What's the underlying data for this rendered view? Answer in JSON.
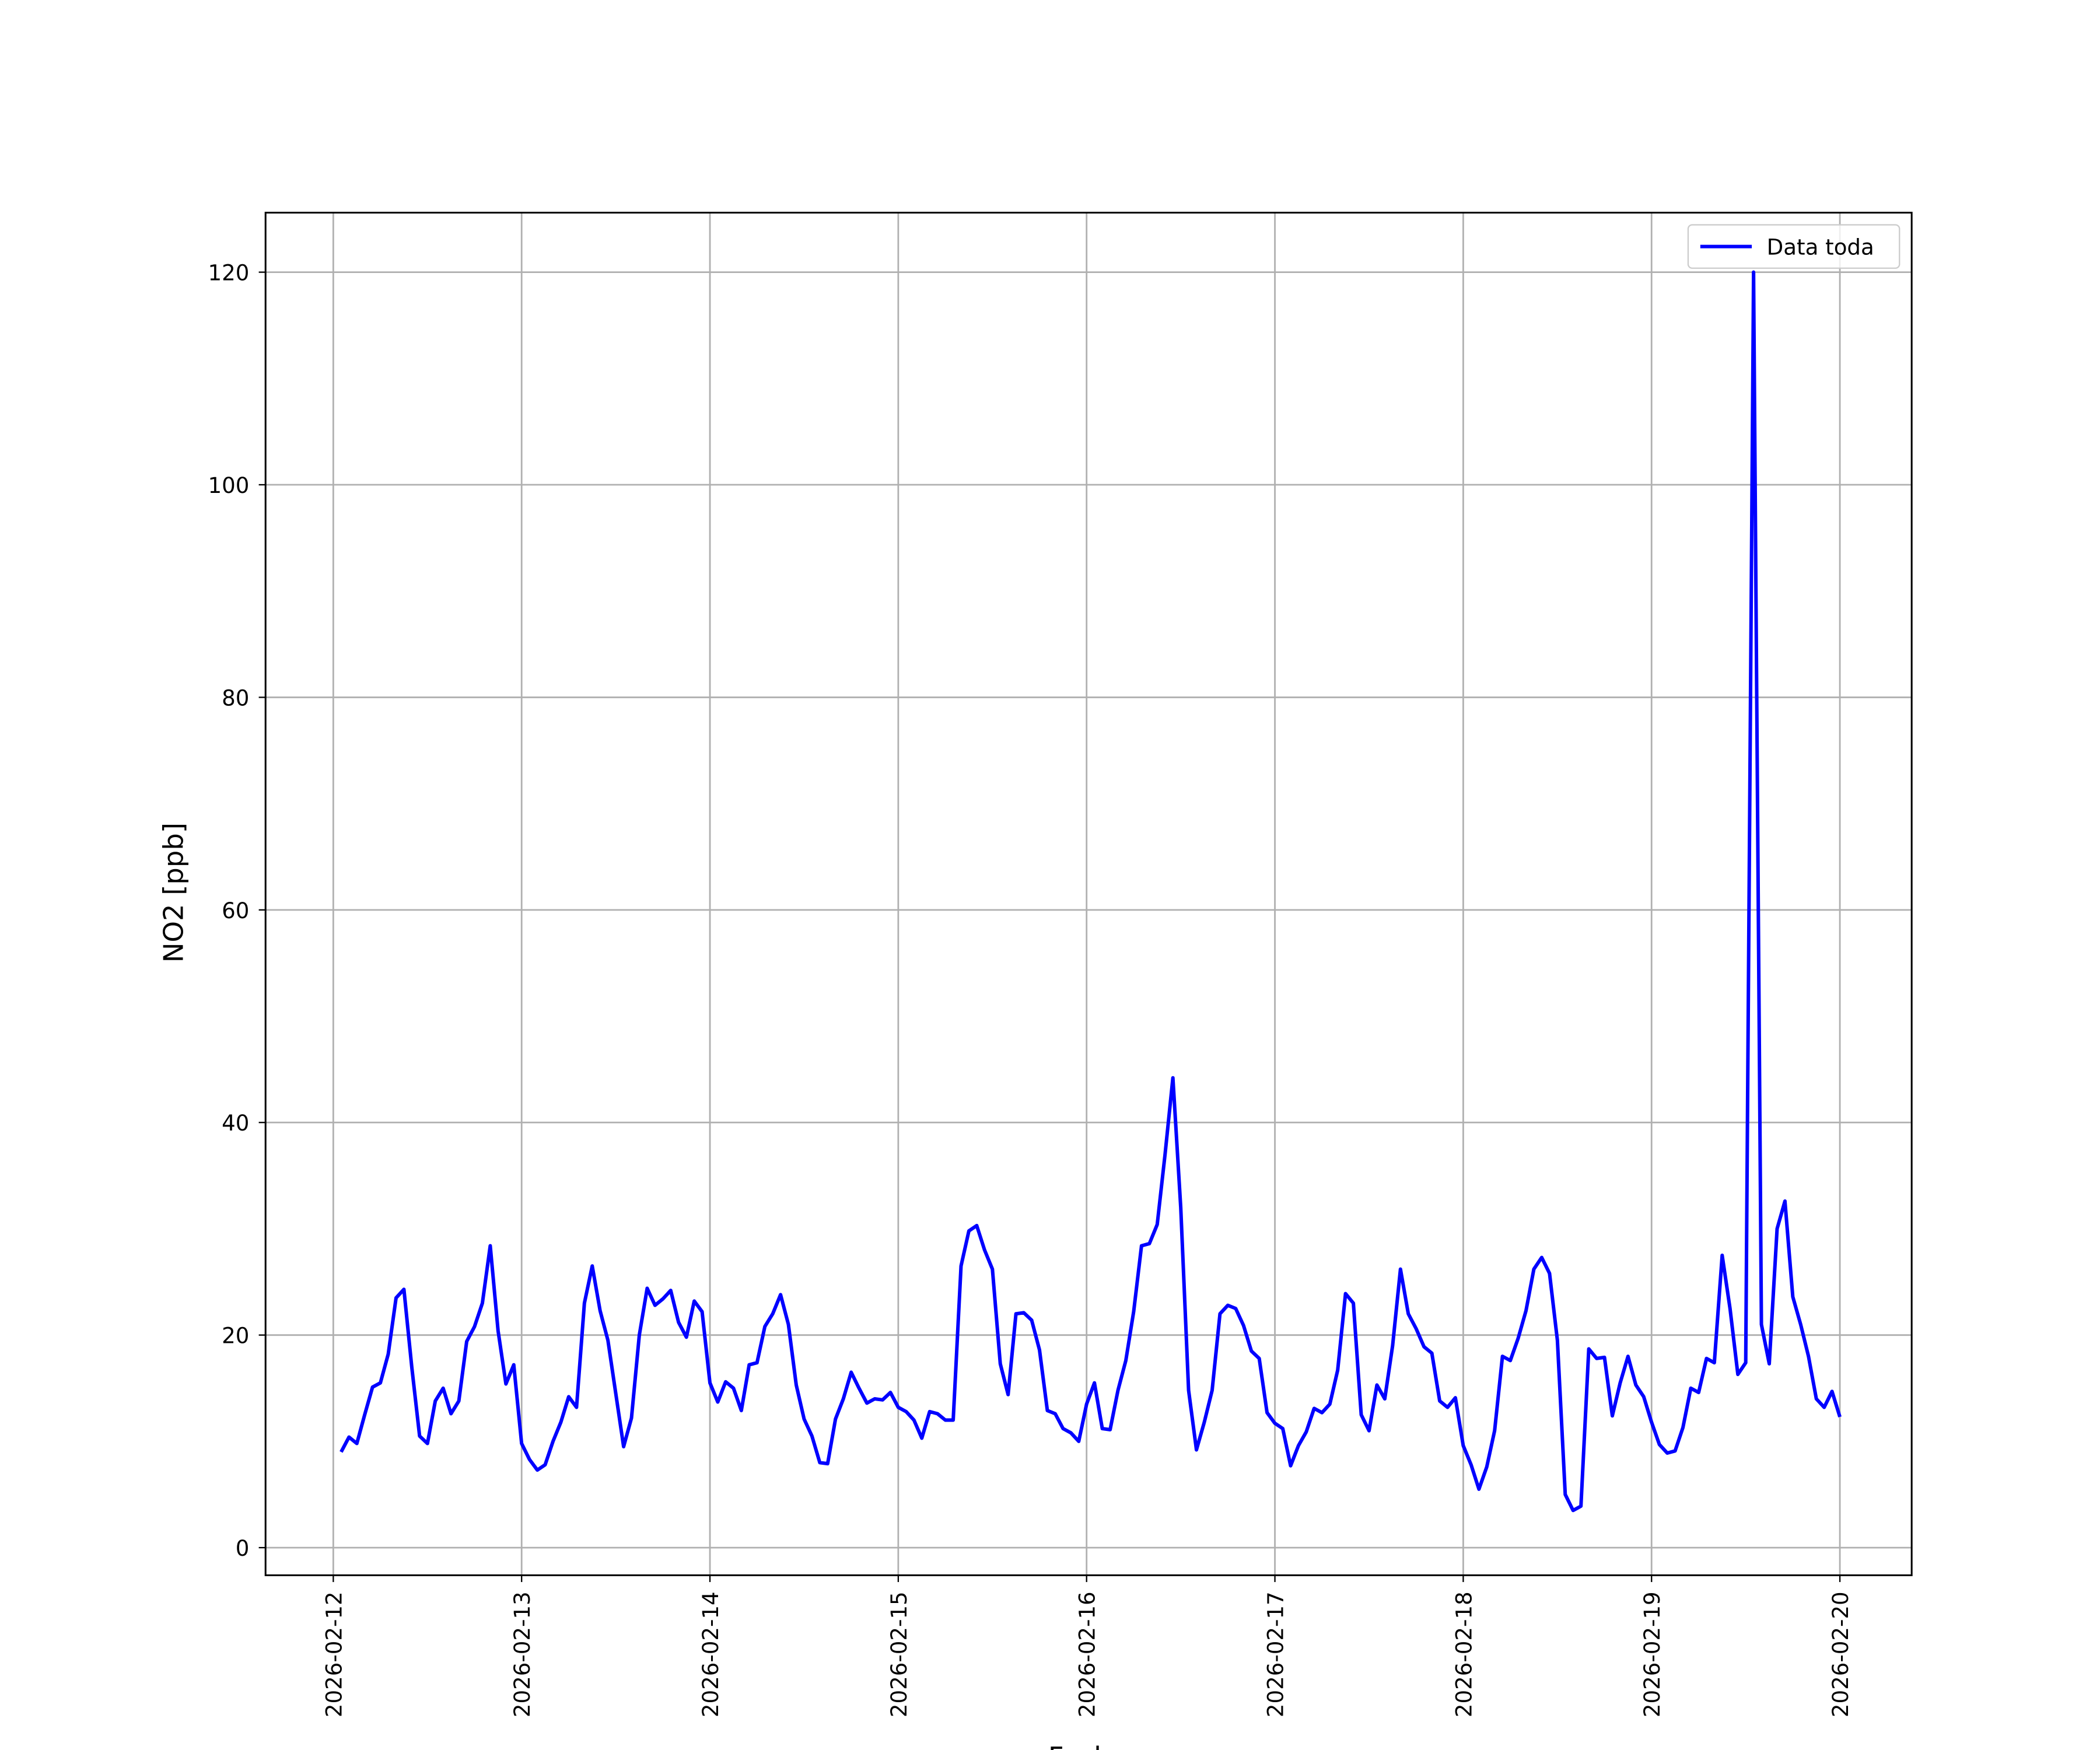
{
  "chart_data": {
    "type": "line",
    "xlabel": "Fecha",
    "ylabel": "NO2 [ppb]",
    "x": [
      "2026-02-12 01:00",
      "2026-02-12 02:00",
      "2026-02-12 03:00",
      "2026-02-12 04:00",
      "2026-02-12 05:00",
      "2026-02-12 06:00",
      "2026-02-12 07:00",
      "2026-02-12 08:00",
      "2026-02-12 09:00",
      "2026-02-12 10:00",
      "2026-02-12 11:00",
      "2026-02-12 12:00",
      "2026-02-12 13:00",
      "2026-02-12 14:00",
      "2026-02-12 15:00",
      "2026-02-12 16:00",
      "2026-02-12 17:00",
      "2026-02-12 18:00",
      "2026-02-12 19:00",
      "2026-02-12 20:00",
      "2026-02-12 21:00",
      "2026-02-12 22:00",
      "2026-02-12 23:00",
      "2026-02-13 00:00",
      "2026-02-13 01:00",
      "2026-02-13 02:00",
      "2026-02-13 03:00",
      "2026-02-13 04:00",
      "2026-02-13 05:00",
      "2026-02-13 06:00",
      "2026-02-13 07:00",
      "2026-02-13 08:00",
      "2026-02-13 09:00",
      "2026-02-13 10:00",
      "2026-02-13 11:00",
      "2026-02-13 12:00",
      "2026-02-13 13:00",
      "2026-02-13 14:00",
      "2026-02-13 15:00",
      "2026-02-13 16:00",
      "2026-02-13 17:00",
      "2026-02-13 18:00",
      "2026-02-13 19:00",
      "2026-02-13 20:00",
      "2026-02-13 21:00",
      "2026-02-13 22:00",
      "2026-02-13 23:00",
      "2026-02-14 00:00",
      "2026-02-14 01:00",
      "2026-02-14 02:00",
      "2026-02-14 03:00",
      "2026-02-14 04:00",
      "2026-02-14 05:00",
      "2026-02-14 06:00",
      "2026-02-14 07:00",
      "2026-02-14 08:00",
      "2026-02-14 09:00",
      "2026-02-14 10:00",
      "2026-02-14 11:00",
      "2026-02-14 12:00",
      "2026-02-14 13:00",
      "2026-02-14 14:00",
      "2026-02-14 15:00",
      "2026-02-14 16:00",
      "2026-02-14 17:00",
      "2026-02-14 18:00",
      "2026-02-14 19:00",
      "2026-02-14 20:00",
      "2026-02-14 21:00",
      "2026-02-14 22:00",
      "2026-02-14 23:00",
      "2026-02-15 00:00",
      "2026-02-15 01:00",
      "2026-02-15 02:00",
      "2026-02-15 03:00",
      "2026-02-15 04:00",
      "2026-02-15 05:00",
      "2026-02-15 06:00",
      "2026-02-15 07:00",
      "2026-02-15 08:00",
      "2026-02-15 09:00",
      "2026-02-15 10:00",
      "2026-02-15 11:00",
      "2026-02-15 12:00",
      "2026-02-15 13:00",
      "2026-02-15 14:00",
      "2026-02-15 15:00",
      "2026-02-15 16:00",
      "2026-02-15 17:00",
      "2026-02-15 18:00",
      "2026-02-15 19:00",
      "2026-02-15 20:00",
      "2026-02-15 21:00",
      "2026-02-15 22:00",
      "2026-02-15 23:00",
      "2026-02-16 00:00",
      "2026-02-16 01:00",
      "2026-02-16 02:00",
      "2026-02-16 03:00",
      "2026-02-16 04:00",
      "2026-02-16 05:00",
      "2026-02-16 06:00",
      "2026-02-16 07:00",
      "2026-02-16 08:00",
      "2026-02-16 09:00",
      "2026-02-16 10:00",
      "2026-02-16 11:00",
      "2026-02-16 12:00",
      "2026-02-16 13:00",
      "2026-02-16 14:00",
      "2026-02-16 15:00",
      "2026-02-16 16:00",
      "2026-02-16 17:00",
      "2026-02-16 18:00",
      "2026-02-16 19:00",
      "2026-02-16 20:00",
      "2026-02-16 21:00",
      "2026-02-16 22:00",
      "2026-02-16 23:00",
      "2026-02-17 00:00",
      "2026-02-17 01:00",
      "2026-02-17 02:00",
      "2026-02-17 03:00",
      "2026-02-17 04:00",
      "2026-02-17 05:00",
      "2026-02-17 06:00",
      "2026-02-17 07:00",
      "2026-02-17 08:00",
      "2026-02-17 09:00",
      "2026-02-17 10:00",
      "2026-02-17 11:00",
      "2026-02-17 12:00",
      "2026-02-17 13:00",
      "2026-02-17 14:00",
      "2026-02-17 15:00",
      "2026-02-17 16:00",
      "2026-02-17 17:00",
      "2026-02-17 18:00",
      "2026-02-17 19:00",
      "2026-02-17 20:00",
      "2026-02-17 21:00",
      "2026-02-17 22:00",
      "2026-02-17 23:00",
      "2026-02-18 00:00",
      "2026-02-18 01:00",
      "2026-02-18 02:00",
      "2026-02-18 03:00",
      "2026-02-18 04:00",
      "2026-02-18 05:00",
      "2026-02-18 06:00",
      "2026-02-18 07:00",
      "2026-02-18 08:00",
      "2026-02-18 09:00",
      "2026-02-18 10:00",
      "2026-02-18 11:00",
      "2026-02-18 12:00",
      "2026-02-18 13:00",
      "2026-02-18 14:00",
      "2026-02-18 15:00",
      "2026-02-18 16:00",
      "2026-02-18 17:00",
      "2026-02-18 18:00",
      "2026-02-18 19:00",
      "2026-02-18 20:00",
      "2026-02-18 21:00",
      "2026-02-18 22:00",
      "2026-02-18 23:00",
      "2026-02-19 00:00",
      "2026-02-19 01:00",
      "2026-02-19 02:00",
      "2026-02-19 03:00",
      "2026-02-19 04:00",
      "2026-02-19 05:00",
      "2026-02-19 06:00",
      "2026-02-19 07:00",
      "2026-02-19 08:00",
      "2026-02-19 09:00",
      "2026-02-19 10:00",
      "2026-02-19 11:00",
      "2026-02-19 12:00",
      "2026-02-19 13:00",
      "2026-02-19 14:00",
      "2026-02-19 15:00",
      "2026-02-19 16:00",
      "2026-02-19 17:00",
      "2026-02-19 18:00",
      "2026-02-19 19:00",
      "2026-02-19 20:00",
      "2026-02-19 21:00",
      "2026-02-19 22:00",
      "2026-02-19 23:00",
      "2026-02-20 00:00"
    ],
    "series": [
      {
        "name": "Data toda",
        "color": "#0000ff",
        "values": [
          9.0,
          10.4,
          9.8,
          12.5,
          15.1,
          15.5,
          18.2,
          23.5,
          24.3,
          17.0,
          10.5,
          9.8,
          13.8,
          15.0,
          12.6,
          13.8,
          19.4,
          20.8,
          23.0,
          28.4,
          20.4,
          15.4,
          17.2,
          9.8,
          8.3,
          7.3,
          7.8,
          10.0,
          11.8,
          14.2,
          13.2,
          23.0,
          26.5,
          22.3,
          19.5,
          14.5,
          9.5,
          12.2,
          20.0,
          24.4,
          22.8,
          23.4,
          24.2,
          21.2,
          19.8,
          23.2,
          22.2,
          15.5,
          13.7,
          15.6,
          15.0,
          12.9,
          17.2,
          17.4,
          20.8,
          22.0,
          23.8,
          21.0,
          15.3,
          12.1,
          10.5,
          8.0,
          7.9,
          12.1,
          14.0,
          16.5,
          15.0,
          13.6,
          14.0,
          13.9,
          14.6,
          13.2,
          12.8,
          12.0,
          10.3,
          12.8,
          12.6,
          12.0,
          12.0,
          26.5,
          29.8,
          30.3,
          28.0,
          26.2,
          17.3,
          14.4,
          22.0,
          22.1,
          21.4,
          18.6,
          12.9,
          12.6,
          11.2,
          10.8,
          10.0,
          13.5,
          15.5,
          11.2,
          11.1,
          14.8,
          17.6,
          22.2,
          28.4,
          28.6,
          30.4,
          37.0,
          44.2,
          32.0,
          14.8,
          9.2,
          11.8,
          14.8,
          22.0,
          22.8,
          22.5,
          20.9,
          18.5,
          17.8,
          12.7,
          11.7,
          11.2,
          7.7,
          9.6,
          10.9,
          13.1,
          12.7,
          13.5,
          16.7,
          23.9,
          23.0,
          12.5,
          11.0,
          15.3,
          14.0,
          19.0,
          26.2,
          22.0,
          20.6,
          18.9,
          18.3,
          13.8,
          13.2,
          14.1,
          9.6,
          7.8,
          5.5,
          7.6,
          11.0,
          18.0,
          17.6,
          19.7,
          22.3,
          26.2,
          27.3,
          25.8,
          19.5,
          5.0,
          3.5,
          3.9,
          18.7,
          17.8,
          17.9,
          12.4,
          15.5,
          18.0,
          15.3,
          14.2,
          11.8,
          9.7,
          8.9,
          9.1,
          11.3,
          15.0,
          14.6,
          17.8,
          17.4,
          27.5,
          22.5,
          16.3,
          17.4,
          120.0,
          21.0,
          17.3,
          30.0,
          32.6,
          23.6,
          21.0,
          18.0,
          14.0,
          13.2,
          14.7,
          12.3
        ]
      }
    ],
    "xlim": [
      "2026-02-11 15:22",
      "2026-02-20 09:09"
    ],
    "xticks": [
      "2026-02-12",
      "2026-02-13",
      "2026-02-14",
      "2026-02-15",
      "2026-02-16",
      "2026-02-17",
      "2026-02-18",
      "2026-02-19",
      "2026-02-20"
    ],
    "ylim": [
      -2.6,
      125.6
    ],
    "yticks": [
      0,
      20,
      40,
      60,
      80,
      100,
      120
    ],
    "grid": true,
    "legend": "upper right"
  }
}
